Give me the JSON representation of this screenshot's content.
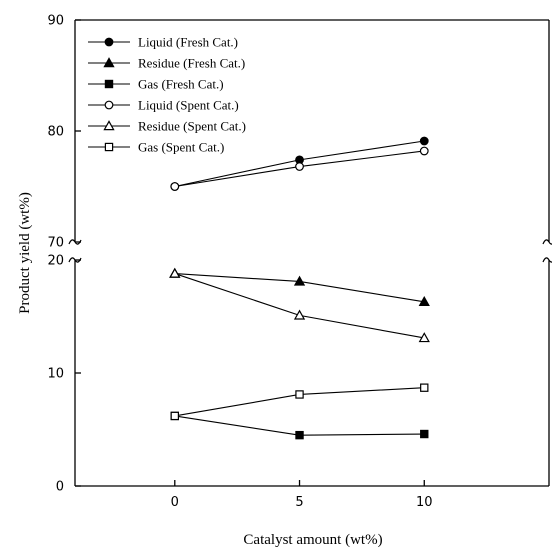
{
  "chart_data": {
    "type": "line",
    "xlabel": "Catalyst amount (wt%)",
    "ylabel": "Product yield (wt%)",
    "x": [
      0,
      5,
      10
    ],
    "x_ticks": [
      "0",
      "5",
      "10"
    ],
    "xlim": [
      -4,
      15
    ],
    "y_axis_break": {
      "from": 20,
      "to": 70
    },
    "ylim_lower": [
      0,
      20
    ],
    "ylim_upper": [
      70,
      90
    ],
    "y_ticks_lower": [
      "0",
      "10",
      "20"
    ],
    "y_ticks_upper": [
      "70",
      "80",
      "90"
    ],
    "legend_position": "top-left",
    "series": [
      {
        "name": "Liquid (Fresh Cat.)",
        "marker": "circle",
        "filled": true,
        "values": [
          75.0,
          77.4,
          79.1
        ]
      },
      {
        "name": "Residue (Fresh Cat.)",
        "marker": "triangle",
        "filled": true,
        "values": [
          18.8,
          18.1,
          16.3
        ]
      },
      {
        "name": "Gas (Fresh Cat.)",
        "marker": "square",
        "filled": true,
        "values": [
          6.2,
          4.5,
          4.6
        ]
      },
      {
        "name": "Liquid (Spent Cat.)",
        "marker": "circle",
        "filled": false,
        "values": [
          75.0,
          76.8,
          78.2
        ]
      },
      {
        "name": "Residue (Spent Cat.)",
        "marker": "triangle",
        "filled": false,
        "values": [
          18.8,
          15.1,
          13.1
        ]
      },
      {
        "name": "Gas (Spent Cat.)",
        "marker": "square",
        "filled": false,
        "values": [
          6.2,
          8.1,
          8.7
        ]
      }
    ]
  }
}
